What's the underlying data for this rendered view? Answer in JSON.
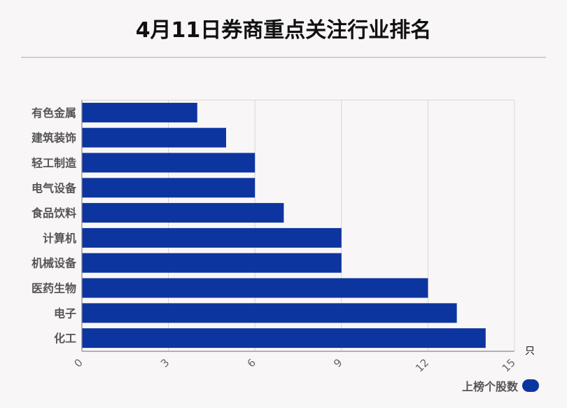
{
  "title": "4月11日券商重点关注行业排名",
  "chart_data": {
    "type": "bar",
    "orientation": "horizontal",
    "categories": [
      "有色金属",
      "建筑装饰",
      "轻工制造",
      "电气设备",
      "食品饮料",
      "计算机",
      "机械设备",
      "医药生物",
      "电子",
      "化工"
    ],
    "series": [
      {
        "name": "上榜个股数",
        "values": [
          4,
          5,
          6,
          6,
          7,
          9,
          9,
          12,
          13,
          14
        ],
        "color": "#0d35a0"
      }
    ],
    "x_ticks": [
      "0",
      "3",
      "6",
      "9",
      "12",
      "15"
    ],
    "xlim": [
      0,
      15
    ],
    "x_unit": "只",
    "grid": true,
    "legend_position": "bottom-right"
  },
  "legend": {
    "label": "上榜个股数"
  }
}
